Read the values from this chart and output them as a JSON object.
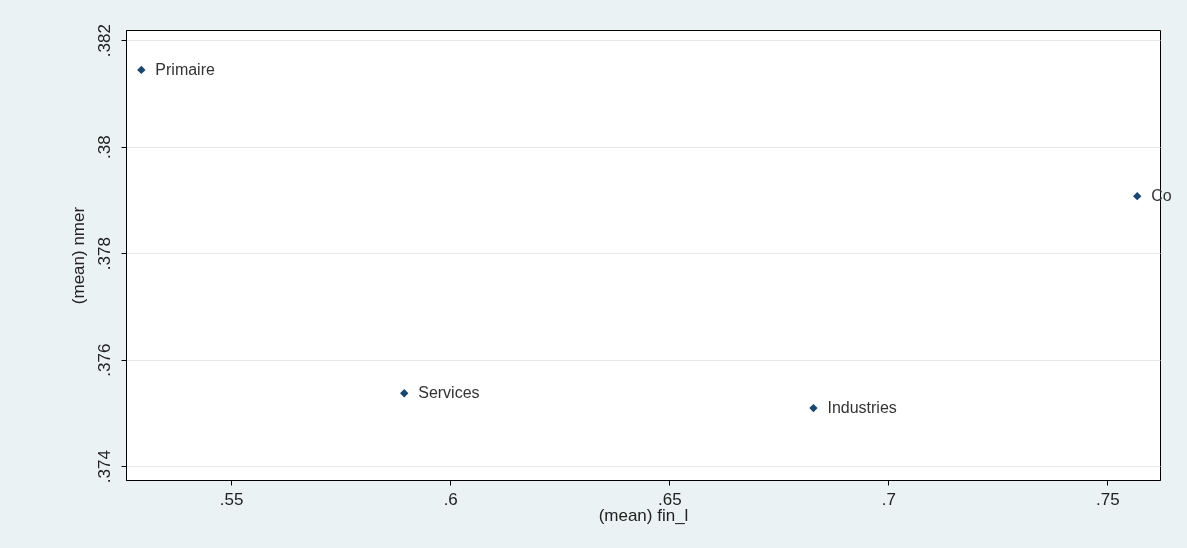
{
  "chart_data": {
    "type": "scatter",
    "xlabel": "(mean) fin_l",
    "ylabel": "(mean) nmer",
    "x": [
      0.5295,
      0.5895,
      0.6829,
      0.7568
    ],
    "series": [
      {
        "color": "#1a476f",
        "values": [
          0.38144,
          0.37537,
          0.37509,
          0.37907
        ]
      }
    ],
    "annotations": [
      {
        "text": "Primaire",
        "x": 0.5295,
        "y": 0.38144
      },
      {
        "text": "Services",
        "x": 0.5895,
        "y": 0.37537
      },
      {
        "text": "Industries",
        "x": 0.6829,
        "y": 0.37509
      },
      {
        "text": "Co",
        "x": 0.7568,
        "y": 0.37907
      }
    ],
    "xlim": [
      0.526,
      0.762
    ],
    "ylim": [
      0.37374,
      0.38219
    ],
    "xticks": [
      {
        "value": 0.55,
        "label": ".55"
      },
      {
        "value": 0.6,
        "label": ".6"
      },
      {
        "value": 0.65,
        "label": ".65"
      },
      {
        "value": 0.7,
        "label": ".7"
      },
      {
        "value": 0.75,
        "label": ".75"
      }
    ],
    "yticks": [
      {
        "value": 0.374,
        "label": ".374"
      },
      {
        "value": 0.376,
        "label": ".376"
      },
      {
        "value": 0.378,
        "label": ".378"
      },
      {
        "value": 0.38,
        "label": ".38"
      },
      {
        "value": 0.382,
        "label": ".382"
      }
    ],
    "grid": "y",
    "marker": "diamond"
  }
}
